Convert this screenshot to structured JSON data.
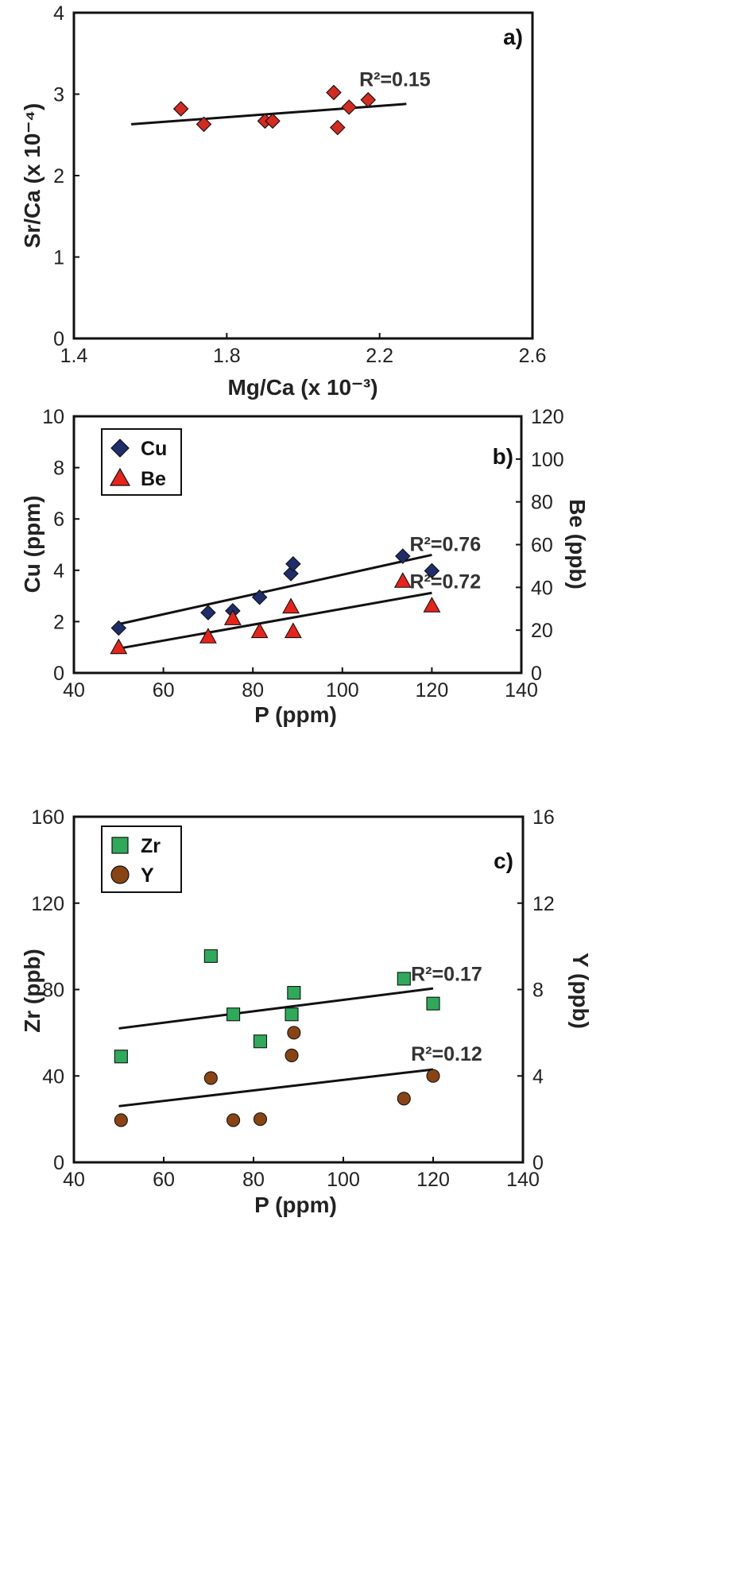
{
  "chart_data": [
    {
      "type": "scatter",
      "panel_label": "a)",
      "xlabel": "Mg/Ca (x 10⁻³)",
      "ylabel": "Sr/Ca (x 10⁻⁴)",
      "xlim": [
        1.4,
        2.6
      ],
      "ylim": [
        0,
        4
      ],
      "xticks": [
        "1.4",
        "1.8",
        "2.2",
        "2.6"
      ],
      "yticks": [
        "0",
        "1",
        "2",
        "3",
        "4"
      ],
      "legend": false,
      "series": [
        {
          "marker": "diamond",
          "color": "#d42a20",
          "x": [
            1.68,
            1.74,
            1.9,
            1.92,
            2.08,
            2.09,
            2.12,
            2.17
          ],
          "y": [
            2.82,
            2.63,
            2.67,
            2.67,
            3.02,
            2.59,
            2.84,
            2.93
          ]
        }
      ],
      "trendlines": [
        {
          "x": [
            1.55,
            2.27
          ],
          "y": [
            2.63,
            2.88
          ],
          "r2_label": "R²=0.15",
          "label_at": [
            2.24,
            3.1
          ]
        }
      ]
    },
    {
      "type": "scatter",
      "panel_label": "b)",
      "xlabel": "P (ppm)",
      "ylabel": "Cu (ppm)",
      "y2label": "Be (ppb)",
      "xlim": [
        40,
        140
      ],
      "ylim": [
        0,
        10
      ],
      "y2lim": [
        0,
        120
      ],
      "xticks": [
        "40",
        "60",
        "80",
        "100",
        "120",
        "140"
      ],
      "yticks": [
        "0",
        "2",
        "4",
        "6",
        "8",
        "10"
      ],
      "y2ticks": [
        "0",
        "20",
        "40",
        "60",
        "80",
        "100",
        "120"
      ],
      "legend": "top-left",
      "series": [
        {
          "name": "Cu",
          "marker": "diamond",
          "color": "#1f2d6b",
          "axis": "left",
          "x": [
            50,
            70,
            75.5,
            81.5,
            88.5,
            89,
            113.5,
            120
          ],
          "y": [
            1.75,
            2.35,
            2.42,
            2.95,
            3.87,
            4.25,
            4.55,
            3.98
          ]
        },
        {
          "name": "Be",
          "marker": "triangle",
          "color": "#e8231a",
          "axis": "right",
          "x": [
            50,
            70,
            75.5,
            81.5,
            88.5,
            89,
            113.5,
            120
          ],
          "y": [
            12,
            17,
            25.5,
            19.5,
            31,
            19.5,
            43,
            31.5
          ]
        }
      ],
      "trendlines": [
        {
          "axis": "left",
          "x": [
            50,
            120
          ],
          "y": [
            1.9,
            4.6
          ],
          "r2_label": "R²=0.76",
          "label_at": [
            123,
            4.75
          ]
        },
        {
          "axis": "left",
          "x": [
            50,
            120
          ],
          "y": [
            0.95,
            3.12
          ],
          "r2_label": "R²=0.72",
          "label_at": [
            123,
            3.3
          ]
        }
      ]
    },
    {
      "type": "scatter",
      "panel_label": "c)",
      "xlabel": "P (ppm)",
      "ylabel": "Zr (ppb)",
      "y2label": "Y (ppb)",
      "xlim": [
        40,
        140
      ],
      "ylim": [
        0,
        160
      ],
      "y2lim": [
        0,
        16
      ],
      "xticks": [
        "40",
        "60",
        "80",
        "100",
        "120",
        "140"
      ],
      "yticks": [
        "0",
        "40",
        "80",
        "120",
        "160"
      ],
      "y2ticks": [
        "0",
        "4",
        "8",
        "12",
        "16"
      ],
      "legend": "top-left",
      "series": [
        {
          "name": "Zr",
          "marker": "square",
          "color": "#2eaa5a",
          "axis": "left",
          "x": [
            50.5,
            70.5,
            75.5,
            81.5,
            88.5,
            89,
            113.5,
            120
          ],
          "y": [
            49,
            95.5,
            68.5,
            56,
            68.5,
            78.5,
            85,
            73.5
          ]
        },
        {
          "name": "Y",
          "marker": "circle",
          "color": "#8a4414",
          "axis": "right",
          "x": [
            50.5,
            70.5,
            75.5,
            81.5,
            88.5,
            89,
            113.5,
            120
          ],
          "y": [
            1.95,
            3.9,
            1.95,
            2.0,
            4.95,
            6.0,
            2.95,
            4.0
          ]
        }
      ],
      "trendlines": [
        {
          "axis": "left",
          "x": [
            50,
            120
          ],
          "y": [
            62,
            80.5
          ],
          "r2_label": "R²=0.17",
          "label_at": [
            123,
            84
          ]
        },
        {
          "axis": "left",
          "x": [
            50,
            120
          ],
          "y": [
            26,
            43
          ],
          "r2_label": "R²=0.12",
          "label_at": [
            123,
            47
          ]
        }
      ]
    }
  ]
}
